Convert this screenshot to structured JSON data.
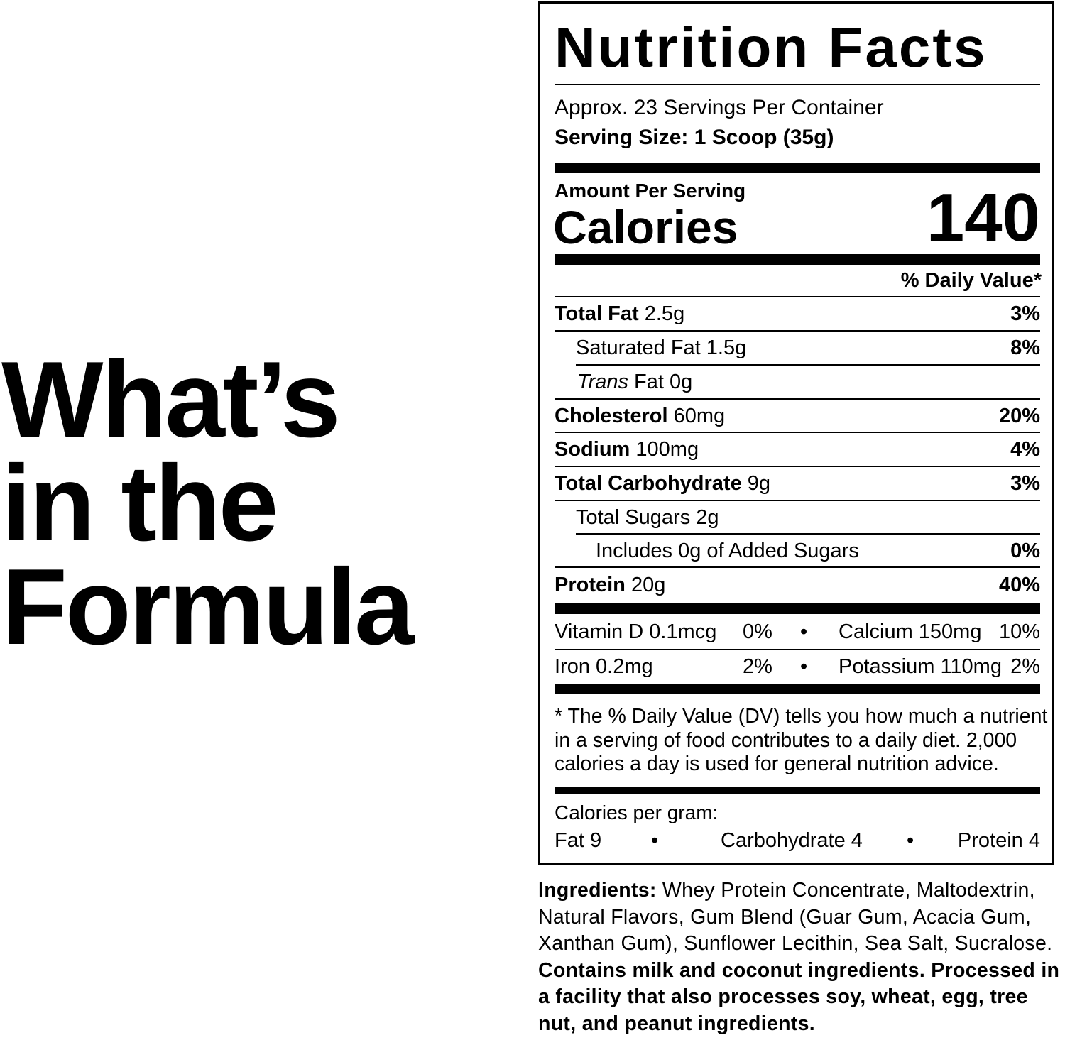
{
  "heading": [
    "What’s",
    "in the",
    "Formula"
  ],
  "label": {
    "title": "Nutrition Facts",
    "servings": "Approx. 23 Servings Per Container",
    "serving_size": "Serving Size: 1 Scoop (35g)",
    "amount_per_serving": "Amount Per Serving",
    "calories_label": "Calories",
    "calories_value": "140",
    "dv_header": "% Daily Value*",
    "rows": [
      {
        "name": "Total Fat",
        "amount": "2.5g",
        "dv": "3%"
      },
      {
        "name": "Saturated Fat 1.5g",
        "amount": "",
        "dv": "8%"
      },
      {
        "name": "Trans",
        "amount": "Fat 0g",
        "dv": ""
      },
      {
        "name": "Cholesterol",
        "amount": "60mg",
        "dv": "20%"
      },
      {
        "name": "Sodium",
        "amount": "100mg",
        "dv": "4%"
      },
      {
        "name": "Total Carbohydrate",
        "amount": "9g",
        "dv": "3%"
      },
      {
        "name": "Total Sugars 2g",
        "amount": "",
        "dv": ""
      },
      {
        "name": "Includes 0g of Added Sugars",
        "amount": "",
        "dv": "0%"
      },
      {
        "name": "Protein",
        "amount": "20g",
        "dv": "40%"
      }
    ],
    "micros": [
      {
        "left": "Vitamin D 0.1mcg",
        "left_dv": "0%",
        "right": "Calcium 150mg",
        "right_dv": "10%"
      },
      {
        "left": "Iron 0.2mg",
        "left_dv": "2%",
        "right": "Potassium 110mg",
        "right_dv": "2%"
      }
    ],
    "bullet": "•",
    "footnote": [
      "* The % Daily Value (DV) tells you how much a nutrient",
      "in a serving of food contributes to a daily diet. 2,000",
      "calories a day is used for general nutrition advice."
    ],
    "cal_per_gram": "Calories per gram:",
    "cal_fat": "Fat 9",
    "cal_carb": "Carbohydrate 4",
    "cal_protein": "Protein 4"
  },
  "ingredients": {
    "label": "Ingredients:",
    "text": " Whey Protein Concentrate, Maltodextrin, Natural Flavors, Gum Blend (Guar Gum, Acacia Gum, Xanthan Gum), Sunflower Lecithin, Sea Salt, Sucralose.",
    "allergen": "Contains milk and coconut ingredients. Processed in a facility that also processes soy, wheat, egg, tree nut, and peanut ingredients."
  }
}
